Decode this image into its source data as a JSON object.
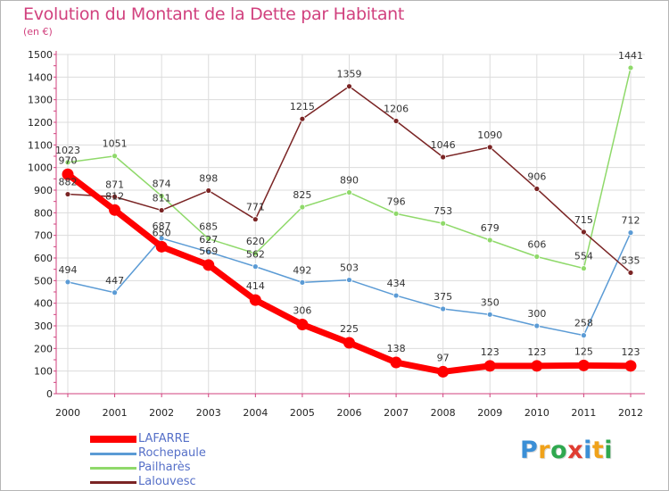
{
  "chart_data": {
    "type": "line",
    "title": "Evolution du Montant de la Dette par Habitant",
    "subtitle": "(en €)",
    "x": [
      "2000",
      "2001",
      "2002",
      "2003",
      "2004",
      "2005",
      "2006",
      "2007",
      "2008",
      "2009",
      "2010",
      "2011",
      "2012"
    ],
    "yticks": [
      "0",
      "100",
      "200",
      "300",
      "400",
      "500",
      "600",
      "700",
      "800",
      "900",
      "1000",
      "1100",
      "1200",
      "1300",
      "1400",
      "1500"
    ],
    "ylim": [
      0,
      1500
    ],
    "grid": true,
    "legend_position": "bottom-left",
    "series": [
      {
        "name": "LAFARRE",
        "color": "#ff0000",
        "values": [
          970,
          812,
          650,
          569,
          414,
          306,
          225,
          138,
          97,
          123,
          123,
          125,
          123
        ],
        "labels": [
          "970",
          "812",
          "650",
          "569",
          "414",
          "306",
          "225",
          "138",
          "97",
          "123",
          "123",
          "125",
          "123"
        ]
      },
      {
        "name": "Rochepaule",
        "color": "#5b9bd5",
        "values": [
          494,
          447,
          687,
          627,
          562,
          492,
          503,
          434,
          375,
          350,
          300,
          258,
          712
        ],
        "labels": [
          "494",
          "447",
          "687",
          "627",
          "562",
          "492",
          "503",
          "434",
          "375",
          "350",
          "300",
          "258",
          "712"
        ]
      },
      {
        "name": "Pailharès",
        "color": "#8fd96a",
        "values": [
          1023,
          1051,
          874,
          685,
          620,
          825,
          890,
          796,
          753,
          679,
          606,
          554,
          1441
        ],
        "labels": [
          "1023",
          "1051",
          "874",
          "685",
          "620",
          "825",
          "890",
          "796",
          "753",
          "679",
          "606",
          "554",
          "1441"
        ]
      },
      {
        "name": "Lalouvesc",
        "color": "#7a2424",
        "values": [
          882,
          871,
          811,
          898,
          771,
          1215,
          1359,
          1206,
          1046,
          1090,
          906,
          715,
          535
        ],
        "labels": [
          "882",
          "871",
          "811",
          "898",
          "771",
          "1215",
          "1359",
          "1206",
          "1046",
          "1090",
          "906",
          "715",
          "535"
        ]
      }
    ]
  },
  "brand": {
    "letters": [
      "P",
      "r",
      "o",
      "x",
      "i",
      "t",
      "i"
    ],
    "colors": [
      "#3b8fd6",
      "#f0a21a",
      "#2fa84f",
      "#e03c31",
      "#3b8fd6",
      "#f0a21a",
      "#2fa84f"
    ]
  }
}
